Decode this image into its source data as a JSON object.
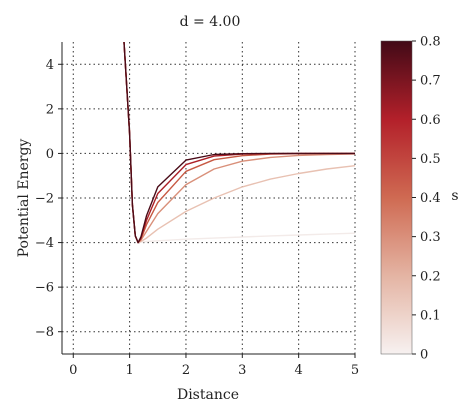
{
  "chart_data": {
    "type": "line",
    "title": "d = 4.00",
    "xlabel": "Distance",
    "ylabel": "Potential Energy",
    "xlim": [
      -0.2,
      5.0
    ],
    "ylim": [
      -9.0,
      5.0
    ],
    "xticks": [
      0,
      1,
      2,
      3,
      4,
      5
    ],
    "yticks": [
      4,
      2,
      0,
      -2,
      -4,
      -6,
      -8
    ],
    "grid": true,
    "colorbar": {
      "label": "s",
      "range": [
        0,
        0.8
      ],
      "ticks": [
        0,
        0.1,
        0.2,
        0.3,
        0.4,
        0.5,
        0.6,
        0.7,
        0.8
      ],
      "colors": [
        "#f7f1f0",
        "#e4b4a3",
        "#cf6a52",
        "#b3202a",
        "#420a17"
      ]
    },
    "series": [
      {
        "color": "#f3ebe9",
        "x": [
          0.9,
          1.0,
          1.05,
          1.1,
          1.15,
          1.2,
          1.3,
          1.5,
          2.0,
          2.5,
          3.0,
          3.5,
          4.0,
          4.5,
          5.0
        ],
        "y": [
          5.0,
          0.9,
          -2.3,
          -3.7,
          -4.0,
          -3.98,
          -3.95,
          -3.92,
          -3.85,
          -3.8,
          -3.75,
          -3.7,
          -3.66,
          -3.62,
          -3.58
        ]
      },
      {
        "color": "#e8c1b2",
        "x": [
          0.9,
          1.0,
          1.05,
          1.1,
          1.15,
          1.2,
          1.3,
          1.5,
          2.0,
          2.5,
          3.0,
          3.5,
          4.0,
          4.5,
          5.0
        ],
        "y": [
          5.0,
          0.9,
          -2.3,
          -3.7,
          -4.0,
          -3.95,
          -3.8,
          -3.4,
          -2.6,
          -2.0,
          -1.5,
          -1.15,
          -0.9,
          -0.7,
          -0.55
        ]
      },
      {
        "color": "#d9907a",
        "x": [
          0.9,
          1.0,
          1.05,
          1.1,
          1.15,
          1.2,
          1.3,
          1.5,
          2.0,
          2.5,
          3.0,
          3.5,
          4.0,
          4.5,
          5.0
        ],
        "y": [
          5.0,
          0.9,
          -2.3,
          -3.7,
          -4.0,
          -3.9,
          -3.5,
          -2.7,
          -1.4,
          -0.7,
          -0.35,
          -0.18,
          -0.09,
          -0.05,
          -0.02
        ]
      },
      {
        "color": "#c75a44",
        "x": [
          0.9,
          1.0,
          1.05,
          1.1,
          1.15,
          1.2,
          1.3,
          1.5,
          2.0,
          2.5,
          3.0,
          3.5,
          4.0,
          4.5,
          5.0
        ],
        "y": [
          5.0,
          0.9,
          -2.3,
          -3.7,
          -4.0,
          -3.85,
          -3.2,
          -2.2,
          -0.8,
          -0.28,
          -0.1,
          -0.03,
          -0.01,
          0.0,
          0.0
        ]
      },
      {
        "color": "#ac2027",
        "x": [
          0.9,
          1.0,
          1.05,
          1.1,
          1.15,
          1.2,
          1.3,
          1.5,
          2.0,
          2.5,
          3.0,
          3.5,
          4.0,
          4.5,
          5.0
        ],
        "y": [
          5.0,
          0.9,
          -2.3,
          -3.7,
          -4.0,
          -3.8,
          -3.0,
          -1.8,
          -0.5,
          -0.12,
          -0.03,
          -0.01,
          0.0,
          0.0,
          0.0
        ]
      },
      {
        "color": "#4a0b18",
        "x": [
          0.9,
          1.0,
          1.05,
          1.1,
          1.15,
          1.2,
          1.3,
          1.5,
          2.0,
          2.5,
          3.0,
          3.5,
          4.0,
          4.5,
          5.0
        ],
        "y": [
          5.0,
          0.9,
          -2.3,
          -3.7,
          -4.0,
          -3.75,
          -2.8,
          -1.5,
          -0.3,
          -0.05,
          -0.01,
          0.0,
          0.0,
          0.0,
          0.0
        ]
      }
    ]
  }
}
